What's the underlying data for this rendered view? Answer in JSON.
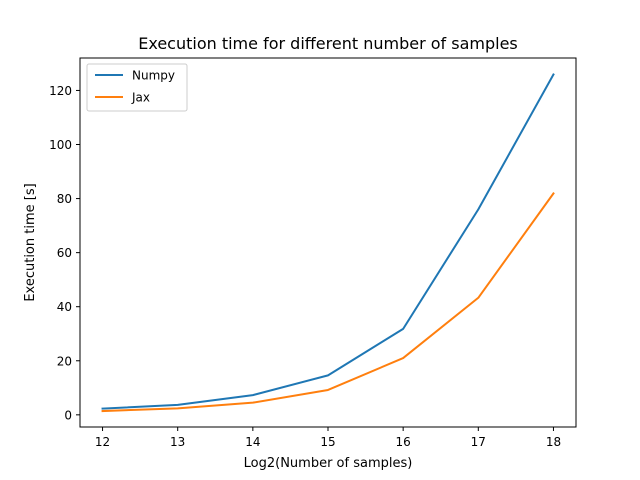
{
  "chart_data": {
    "type": "line",
    "title": "Execution time for different number of samples",
    "xlabel": "Log2(Number of samples)",
    "ylabel": "Execution time [s]",
    "x": [
      12,
      13,
      14,
      15,
      16,
      17,
      18
    ],
    "xlim": [
      11.7,
      18.3
    ],
    "ylim": [
      -4.5,
      132
    ],
    "xticks": [
      12,
      13,
      14,
      15,
      16,
      17,
      18
    ],
    "yticks": [
      0,
      20,
      40,
      60,
      80,
      100,
      120
    ],
    "grid": false,
    "legend_position": "top-left",
    "series": [
      {
        "name": "Numpy",
        "color": "#1f77b4",
        "values": [
          2.3,
          3.7,
          7.3,
          14.6,
          31.8,
          76.0,
          125.9
        ]
      },
      {
        "name": "Jax",
        "color": "#ff7f0e",
        "values": [
          1.4,
          2.4,
          4.5,
          9.2,
          21.0,
          43.3,
          81.9
        ]
      }
    ]
  }
}
